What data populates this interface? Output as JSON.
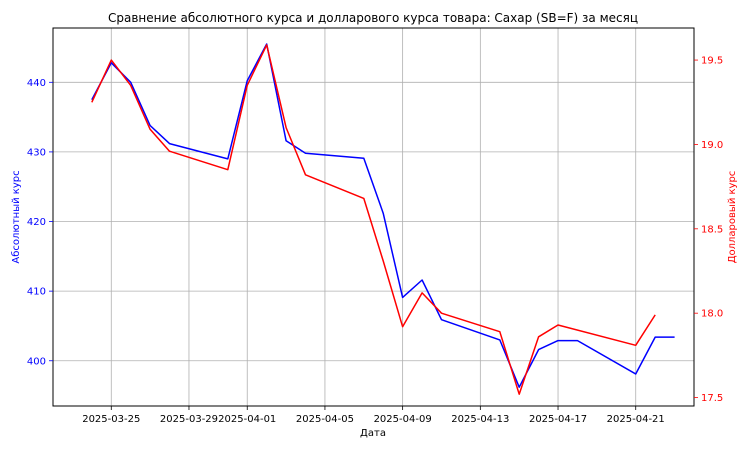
{
  "chart_data": {
    "type": "line",
    "title": "Сравнение абсолютного курса и долларового курса товара: Сахар (SB=F) за месяц",
    "xlabel": "Дата",
    "ylabel_left": "Абсолютный курс",
    "ylabel_right": "Долларовый курс",
    "grid": true,
    "legend": "none",
    "x_ticks": [
      "2025-03-25",
      "2025-03-29",
      "2025-04-01",
      "2025-04-05",
      "2025-04-09",
      "2025-04-13",
      "2025-04-17",
      "2025-04-21"
    ],
    "y_left_ticks": [
      400,
      410,
      420,
      430,
      440
    ],
    "y_right_ticks": [
      "17.5",
      "18.0",
      "18.5",
      "19.0",
      "19.5"
    ],
    "ylim_left": [
      393.5,
      447.8
    ],
    "ylim_right": [
      17.45,
      19.69
    ],
    "xlim": [
      "2025-03-22",
      "2025-04-24"
    ],
    "colors": {
      "left_axis": "#0000ff",
      "right_axis": "#ff0000",
      "grid": "#b0b0b0"
    },
    "series": [
      {
        "axis": "left",
        "color": "#0000ff",
        "points": [
          [
            "2025-03-24",
            437.5
          ],
          [
            "2025-03-25",
            442.8
          ],
          [
            "2025-03-26",
            440.0
          ],
          [
            "2025-03-27",
            433.8
          ],
          [
            "2025-03-28",
            431.2
          ],
          [
            "2025-03-31",
            429.0
          ],
          [
            "2025-04-01",
            440.2
          ],
          [
            "2025-04-02",
            445.5
          ],
          [
            "2025-04-03",
            431.6
          ],
          [
            "2025-04-04",
            429.8
          ],
          [
            "2025-04-07",
            429.1
          ],
          [
            "2025-04-08",
            421.2
          ],
          [
            "2025-04-09",
            409.1
          ],
          [
            "2025-04-10",
            411.6
          ],
          [
            "2025-04-11",
            405.9
          ],
          [
            "2025-04-14",
            403.0
          ],
          [
            "2025-04-15",
            396.2
          ],
          [
            "2025-04-16",
            401.6
          ],
          [
            "2025-04-17",
            402.9
          ],
          [
            "2025-04-18",
            402.9
          ],
          [
            "2025-04-21",
            398.1
          ],
          [
            "2025-04-22",
            403.4
          ],
          [
            "2025-04-23",
            403.4
          ]
        ]
      },
      {
        "axis": "right",
        "color": "#ff0000",
        "points": [
          [
            "2025-03-24",
            19.25
          ],
          [
            "2025-03-25",
            19.5
          ],
          [
            "2025-03-26",
            19.35
          ],
          [
            "2025-03-27",
            19.09
          ],
          [
            "2025-03-28",
            18.96
          ],
          [
            "2025-03-31",
            18.85
          ],
          [
            "2025-04-01",
            19.35
          ],
          [
            "2025-04-02",
            19.59
          ],
          [
            "2025-04-03",
            19.1
          ],
          [
            "2025-04-04",
            18.82
          ],
          [
            "2025-04-07",
            18.68
          ],
          [
            "2025-04-08",
            18.31
          ],
          [
            "2025-04-09",
            17.92
          ],
          [
            "2025-04-10",
            18.12
          ],
          [
            "2025-04-11",
            18.0
          ],
          [
            "2025-04-14",
            17.89
          ],
          [
            "2025-04-15",
            17.52
          ],
          [
            "2025-04-16",
            17.86
          ],
          [
            "2025-04-17",
            17.93
          ],
          [
            "2025-04-21",
            17.81
          ],
          [
            "2025-04-22",
            17.99
          ]
        ]
      }
    ]
  }
}
